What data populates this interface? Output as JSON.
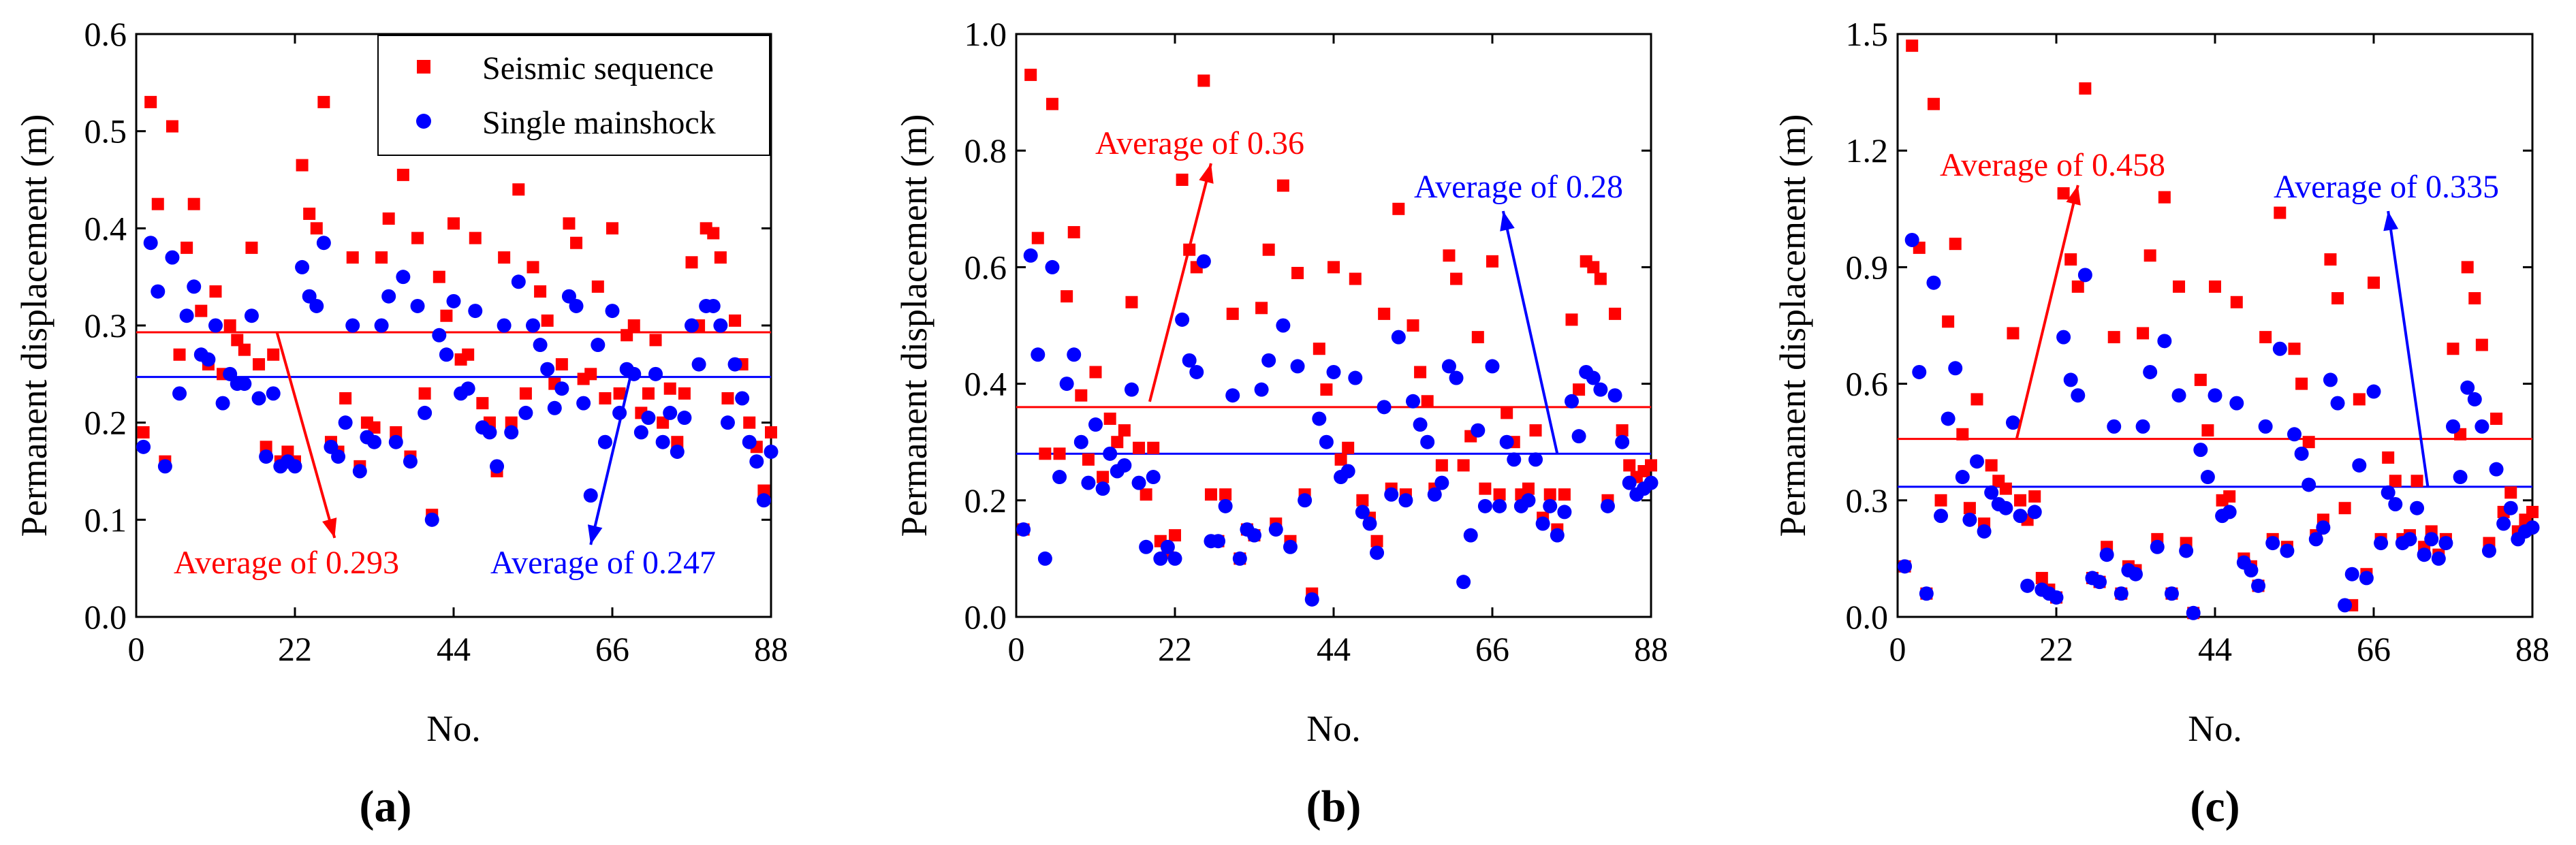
{
  "colors": {
    "sequence": "#ff0000",
    "mainshock": "#0000ff",
    "axis": "#000000"
  },
  "legend": {
    "sequence_label": "Seismic sequence",
    "mainshock_label": "Single mainshock"
  },
  "chart_data": [
    {
      "type": "scatter",
      "panel_label": "(a)",
      "xlabel": "No.",
      "ylabel": "Permanent displacement (m)",
      "xlim": [
        0,
        88
      ],
      "ylim": [
        0,
        0.6
      ],
      "xticks": [
        "0",
        "22",
        "44",
        "66",
        "88"
      ],
      "yticks": [
        "0.0",
        "0.1",
        "0.2",
        "0.3",
        "0.4",
        "0.5",
        "0.6"
      ],
      "legend_position": "top-right",
      "series": [
        {
          "name": "Seismic sequence",
          "role": "sequence",
          "y": [
            0.19,
            0.53,
            0.425,
            0.16,
            0.505,
            0.27,
            0.38,
            0.425,
            0.315,
            0.26,
            0.335,
            0.25,
            0.3,
            0.285,
            0.275,
            0.38,
            0.26,
            0.175,
            0.27,
            0.16,
            0.17,
            0.16,
            0.465,
            0.415,
            0.4,
            0.53,
            0.18,
            0.17,
            0.225,
            0.37,
            0.155,
            0.2,
            0.195,
            0.37,
            0.41,
            0.19,
            0.455,
            0.165,
            0.39,
            0.23,
            0.105,
            0.35,
            0.31,
            0.405,
            0.265,
            0.27,
            0.39,
            0.22,
            0.2,
            0.15,
            0.37,
            0.2,
            0.44,
            0.23,
            0.36,
            0.335,
            0.305,
            0.24,
            0.26,
            0.405,
            0.385,
            0.245,
            0.25,
            0.34,
            0.225,
            0.4,
            0.23,
            0.29,
            0.3,
            0.21,
            0.23,
            0.285,
            0.2,
            0.235,
            0.18,
            0.23,
            0.365,
            0.3,
            0.4,
            0.395,
            0.37,
            0.225,
            0.305,
            0.26,
            0.2,
            0.175,
            0.13,
            0.19
          ]
        },
        {
          "name": "Single mainshock",
          "role": "mainshock",
          "y": [
            0.175,
            0.385,
            0.335,
            0.155,
            0.37,
            0.23,
            0.31,
            0.34,
            0.27,
            0.265,
            0.3,
            0.22,
            0.25,
            0.24,
            0.24,
            0.31,
            0.225,
            0.165,
            0.23,
            0.155,
            0.16,
            0.155,
            0.36,
            0.33,
            0.32,
            0.385,
            0.175,
            0.165,
            0.2,
            0.3,
            0.15,
            0.185,
            0.18,
            0.3,
            0.33,
            0.18,
            0.35,
            0.16,
            0.32,
            0.21,
            0.1,
            0.29,
            0.27,
            0.325,
            0.23,
            0.235,
            0.315,
            0.195,
            0.19,
            0.155,
            0.3,
            0.19,
            0.345,
            0.21,
            0.3,
            0.28,
            0.255,
            0.215,
            0.235,
            0.33,
            0.32,
            0.22,
            0.125,
            0.28,
            0.18,
            0.315,
            0.21,
            0.255,
            0.25,
            0.19,
            0.205,
            0.25,
            0.18,
            0.21,
            0.17,
            0.205,
            0.3,
            0.26,
            0.32,
            0.32,
            0.3,
            0.2,
            0.26,
            0.225,
            0.18,
            0.16,
            0.12,
            0.17
          ]
        }
      ],
      "averages": [
        {
          "role": "sequence",
          "value": 0.293,
          "label": "Average of 0.293"
        },
        {
          "role": "mainshock",
          "value": 0.247,
          "label": "Average of 0.247"
        }
      ]
    },
    {
      "type": "scatter",
      "panel_label": "(b)",
      "xlabel": "No.",
      "ylabel": "Permanent displacement (m)",
      "xlim": [
        0,
        88
      ],
      "ylim": [
        0,
        1.0
      ],
      "xticks": [
        "0",
        "22",
        "44",
        "66",
        "88"
      ],
      "yticks": [
        "0.0",
        "0.2",
        "0.4",
        "0.6",
        "0.8",
        "1.0"
      ],
      "series": [
        {
          "name": "Seismic sequence",
          "role": "sequence",
          "y": [
            0.15,
            0.93,
            0.65,
            0.28,
            0.88,
            0.28,
            0.55,
            0.66,
            0.38,
            0.27,
            0.42,
            0.24,
            0.34,
            0.3,
            0.32,
            0.54,
            0.29,
            0.21,
            0.29,
            0.13,
            0.11,
            0.14,
            0.75,
            0.63,
            0.6,
            0.92,
            0.21,
            0.13,
            0.21,
            0.52,
            0.1,
            0.15,
            0.14,
            0.53,
            0.63,
            0.16,
            0.74,
            0.13,
            0.59,
            0.21,
            0.04,
            0.46,
            0.39,
            0.6,
            0.27,
            0.29,
            0.58,
            0.2,
            0.17,
            0.13,
            0.52,
            0.22,
            0.7,
            0.21,
            0.5,
            0.42,
            0.37,
            0.22,
            0.26,
            0.62,
            0.58,
            0.26,
            0.31,
            0.48,
            0.22,
            0.61,
            0.21,
            0.35,
            0.3,
            0.21,
            0.22,
            0.32,
            0.17,
            0.21,
            0.15,
            0.21,
            0.51,
            0.39,
            0.61,
            0.6,
            0.58,
            0.2,
            0.52,
            0.32,
            0.26,
            0.24,
            0.25,
            0.26
          ]
        },
        {
          "name": "Single mainshock",
          "role": "mainshock",
          "y": [
            0.15,
            0.62,
            0.45,
            0.1,
            0.6,
            0.24,
            0.4,
            0.45,
            0.3,
            0.23,
            0.33,
            0.22,
            0.28,
            0.25,
            0.26,
            0.39,
            0.23,
            0.12,
            0.24,
            0.1,
            0.12,
            0.1,
            0.51,
            0.44,
            0.42,
            0.61,
            0.13,
            0.13,
            0.19,
            0.38,
            0.1,
            0.15,
            0.14,
            0.39,
            0.44,
            0.15,
            0.5,
            0.12,
            0.43,
            0.2,
            0.03,
            0.34,
            0.3,
            0.42,
            0.24,
            0.25,
            0.41,
            0.18,
            0.16,
            0.11,
            0.36,
            0.21,
            0.48,
            0.2,
            0.37,
            0.33,
            0.3,
            0.21,
            0.23,
            0.43,
            0.41,
            0.06,
            0.14,
            0.32,
            0.19,
            0.43,
            0.19,
            0.3,
            0.27,
            0.19,
            0.2,
            0.27,
            0.16,
            0.19,
            0.14,
            0.18,
            0.37,
            0.31,
            0.42,
            0.41,
            0.39,
            0.19,
            0.38,
            0.3,
            0.23,
            0.21,
            0.22,
            0.23
          ]
        }
      ],
      "averages": [
        {
          "role": "sequence",
          "value": 0.36,
          "label": "Average of 0.36"
        },
        {
          "role": "mainshock",
          "value": 0.28,
          "label": "Average of 0.28"
        }
      ]
    },
    {
      "type": "scatter",
      "panel_label": "(c)",
      "xlabel": "No.",
      "ylabel": "Permanent displacement (m)",
      "xlim": [
        0,
        88
      ],
      "ylim": [
        0,
        1.5
      ],
      "xticks": [
        "0",
        "22",
        "44",
        "66",
        "88"
      ],
      "yticks": [
        "0.0",
        "0.3",
        "0.6",
        "0.9",
        "1.2",
        "1.5"
      ],
      "series": [
        {
          "name": "Seismic sequence",
          "role": "sequence",
          "y": [
            0.13,
            1.47,
            0.95,
            0.06,
            1.32,
            0.3,
            0.76,
            0.96,
            0.47,
            0.28,
            0.56,
            0.24,
            0.39,
            0.35,
            0.33,
            0.73,
            0.3,
            0.25,
            0.31,
            0.1,
            0.07,
            0.05,
            1.09,
            0.92,
            0.85,
            1.36,
            0.1,
            0.09,
            0.18,
            0.72,
            0.06,
            0.13,
            0.12,
            0.73,
            0.93,
            0.2,
            1.08,
            0.06,
            0.85,
            0.19,
            0.01,
            0.61,
            0.48,
            0.85,
            0.3,
            0.31,
            0.81,
            0.15,
            0.13,
            0.08,
            0.72,
            0.2,
            1.04,
            0.18,
            0.69,
            0.6,
            0.45,
            0.21,
            0.25,
            0.92,
            0.82,
            0.28,
            0.03,
            0.56,
            0.11,
            0.86,
            0.2,
            0.41,
            0.35,
            0.2,
            0.21,
            0.35,
            0.18,
            0.22,
            0.16,
            0.2,
            0.69,
            0.47,
            0.9,
            0.82,
            0.7,
            0.19,
            0.51,
            0.27,
            0.32,
            0.22,
            0.25,
            0.27
          ]
        },
        {
          "name": "Single mainshock",
          "role": "mainshock",
          "y": [
            0.13,
            0.97,
            0.63,
            0.06,
            0.86,
            0.26,
            0.51,
            0.64,
            0.36,
            0.25,
            0.4,
            0.22,
            0.32,
            0.29,
            0.28,
            0.5,
            0.26,
            0.08,
            0.27,
            0.07,
            0.06,
            0.05,
            0.72,
            0.61,
            0.57,
            0.88,
            0.1,
            0.09,
            0.16,
            0.49,
            0.06,
            0.12,
            0.11,
            0.49,
            0.63,
            0.18,
            0.71,
            0.06,
            0.57,
            0.17,
            0.01,
            0.43,
            0.36,
            0.57,
            0.26,
            0.27,
            0.55,
            0.14,
            0.12,
            0.08,
            0.49,
            0.19,
            0.69,
            0.17,
            0.47,
            0.42,
            0.34,
            0.2,
            0.23,
            0.61,
            0.55,
            0.03,
            0.11,
            0.39,
            0.1,
            0.58,
            0.19,
            0.32,
            0.29,
            0.19,
            0.2,
            0.28,
            0.16,
            0.2,
            0.15,
            0.19,
            0.49,
            0.36,
            0.59,
            0.56,
            0.49,
            0.17,
            0.38,
            0.24,
            0.28,
            0.2,
            0.22,
            0.23
          ]
        }
      ],
      "averages": [
        {
          "role": "sequence",
          "value": 0.458,
          "label": "Average of 0.458"
        },
        {
          "role": "mainshock",
          "value": 0.335,
          "label": "Average of 0.335"
        }
      ]
    }
  ]
}
